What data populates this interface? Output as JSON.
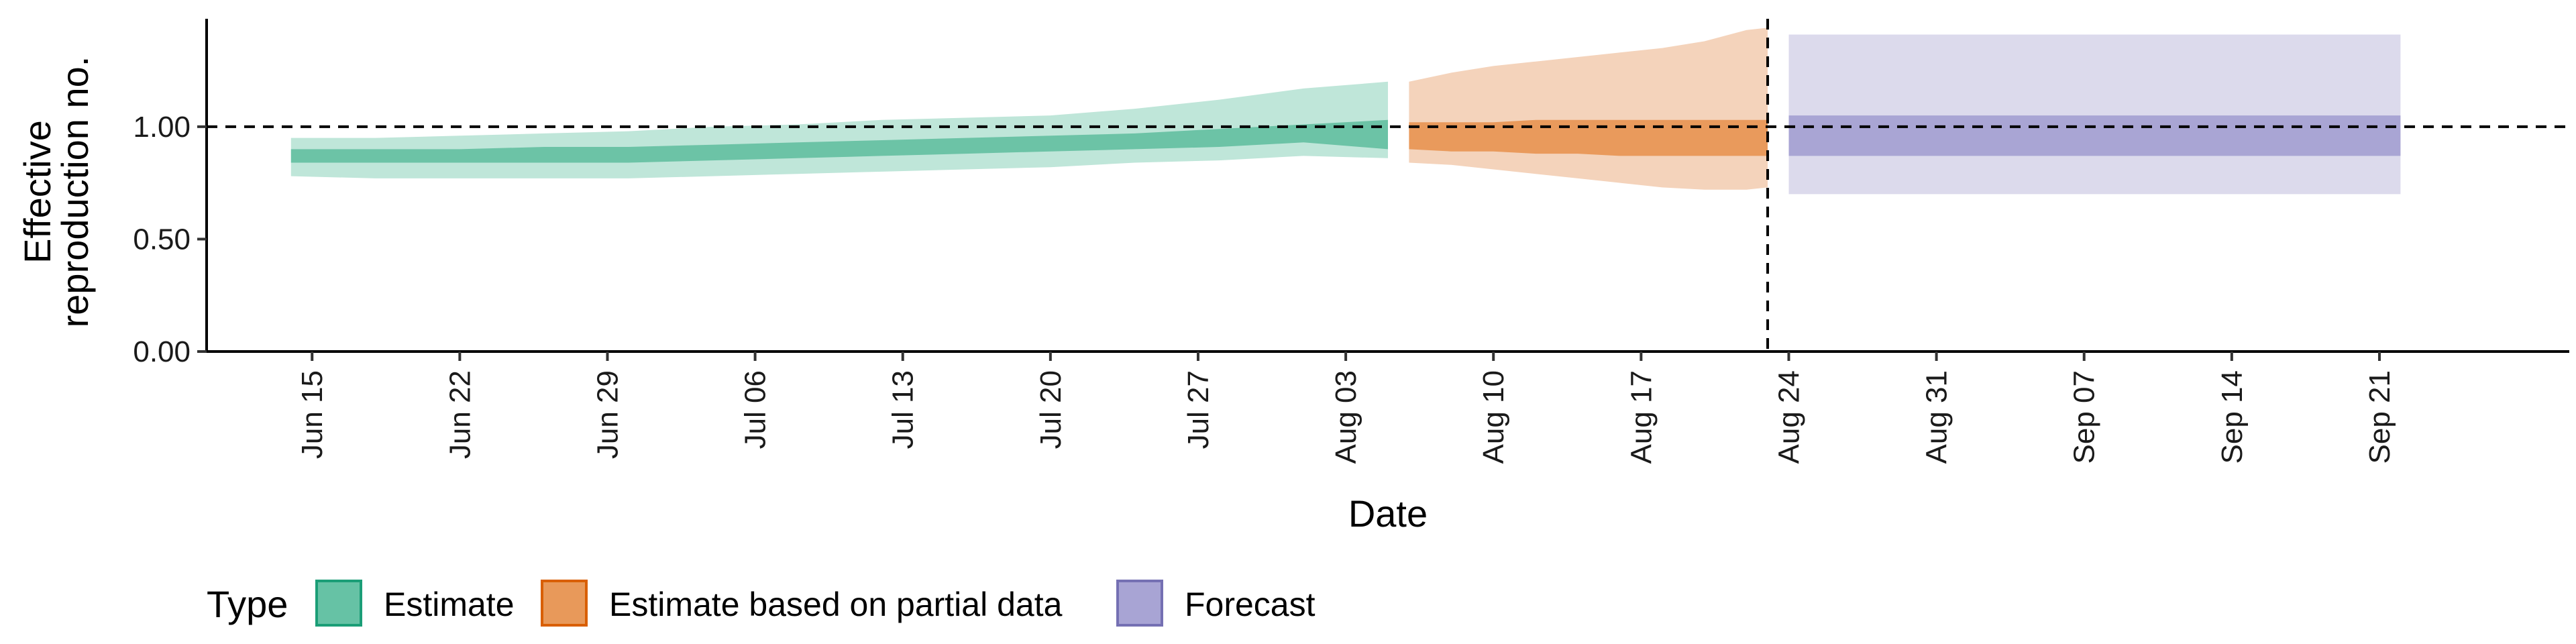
{
  "chart_data": {
    "type": "area",
    "xlabel": "Date",
    "ylabel_lines": [
      "Effective",
      "reproduction no."
    ],
    "ylim": [
      0,
      1.48
    ],
    "y_ticks": [
      {
        "value": 0.0,
        "label": "0.00"
      },
      {
        "value": 0.5,
        "label": "0.50"
      },
      {
        "value": 1.0,
        "label": "1.00"
      }
    ],
    "x_range": [
      "2020-06-10",
      "2020-09-30"
    ],
    "x_ticks": [
      {
        "date": "2020-06-15",
        "label": "Jun 15"
      },
      {
        "date": "2020-06-22",
        "label": "Jun 22"
      },
      {
        "date": "2020-06-29",
        "label": "Jun 29"
      },
      {
        "date": "2020-07-06",
        "label": "Jul 06"
      },
      {
        "date": "2020-07-13",
        "label": "Jul 13"
      },
      {
        "date": "2020-07-20",
        "label": "Jul 20"
      },
      {
        "date": "2020-07-27",
        "label": "Jul 27"
      },
      {
        "date": "2020-08-03",
        "label": "Aug 03"
      },
      {
        "date": "2020-08-10",
        "label": "Aug 10"
      },
      {
        "date": "2020-08-17",
        "label": "Aug 17"
      },
      {
        "date": "2020-08-24",
        "label": "Aug 24"
      },
      {
        "date": "2020-08-31",
        "label": "Aug 31"
      },
      {
        "date": "2020-09-07",
        "label": "Sep 07"
      },
      {
        "date": "2020-09-14",
        "label": "Sep 14"
      },
      {
        "date": "2020-09-21",
        "label": "Sep 21"
      }
    ],
    "reference_line_y": 1.0,
    "forecast_date": "2020-08-23",
    "legend": {
      "title": "Type",
      "placement": "bottom-left",
      "items": [
        {
          "label": "Estimate",
          "fill": "#66c2a5",
          "stroke": "#1b9e77"
        },
        {
          "label": "Estimate based on partial data",
          "fill": "#e8995a",
          "stroke": "#d95f02"
        },
        {
          "label": "Forecast",
          "fill": "#a8a4d4",
          "stroke": "#7570b3"
        }
      ]
    },
    "series": [
      {
        "type_label": "Estimate",
        "colors": {
          "outer": "#bfe6d9",
          "inner": "#6cc3a6"
        },
        "dates": [
          "2020-06-14",
          "2020-06-18",
          "2020-06-22",
          "2020-06-26",
          "2020-06-30",
          "2020-07-04",
          "2020-07-08",
          "2020-07-12",
          "2020-07-16",
          "2020-07-20",
          "2020-07-24",
          "2020-07-28",
          "2020-08-01",
          "2020-08-05"
        ],
        "outer_lower": [
          0.78,
          0.77,
          0.77,
          0.77,
          0.77,
          0.78,
          0.79,
          0.8,
          0.81,
          0.82,
          0.84,
          0.85,
          0.87,
          0.86
        ],
        "outer_upper": [
          0.95,
          0.95,
          0.96,
          0.97,
          0.98,
          1.0,
          1.01,
          1.03,
          1.04,
          1.05,
          1.08,
          1.12,
          1.17,
          1.2
        ],
        "inner_lower": [
          0.84,
          0.84,
          0.84,
          0.84,
          0.84,
          0.85,
          0.86,
          0.87,
          0.88,
          0.89,
          0.9,
          0.91,
          0.93,
          0.9
        ],
        "inner_upper": [
          0.9,
          0.9,
          0.9,
          0.91,
          0.91,
          0.92,
          0.93,
          0.94,
          0.95,
          0.96,
          0.97,
          0.99,
          1.01,
          1.03
        ]
      },
      {
        "type_label": "Estimate based on partial data",
        "colors": {
          "outer": "#f4d3bb",
          "inner": "#e99a5c"
        },
        "dates": [
          "2020-08-06",
          "2020-08-08",
          "2020-08-10",
          "2020-08-12",
          "2020-08-14",
          "2020-08-16",
          "2020-08-18",
          "2020-08-20",
          "2020-08-22",
          "2020-08-23"
        ],
        "outer_lower": [
          0.84,
          0.83,
          0.81,
          0.79,
          0.77,
          0.75,
          0.73,
          0.72,
          0.72,
          0.73
        ],
        "outer_upper": [
          1.2,
          1.24,
          1.27,
          1.29,
          1.31,
          1.33,
          1.35,
          1.38,
          1.43,
          1.44
        ],
        "inner_lower": [
          0.9,
          0.89,
          0.89,
          0.88,
          0.88,
          0.87,
          0.87,
          0.87,
          0.87,
          0.87
        ],
        "inner_upper": [
          1.02,
          1.02,
          1.02,
          1.03,
          1.03,
          1.03,
          1.03,
          1.03,
          1.03,
          1.03
        ]
      },
      {
        "type_label": "Forecast",
        "colors": {
          "outer": "#dcdaec",
          "inner": "#a9a5d4"
        },
        "dates": [
          "2020-08-24",
          "2020-09-22"
        ],
        "outer_lower": [
          0.7,
          0.7
        ],
        "outer_upper": [
          1.41,
          1.41
        ],
        "inner_lower": [
          0.87,
          0.87
        ],
        "inner_upper": [
          1.05,
          1.05
        ]
      }
    ]
  }
}
